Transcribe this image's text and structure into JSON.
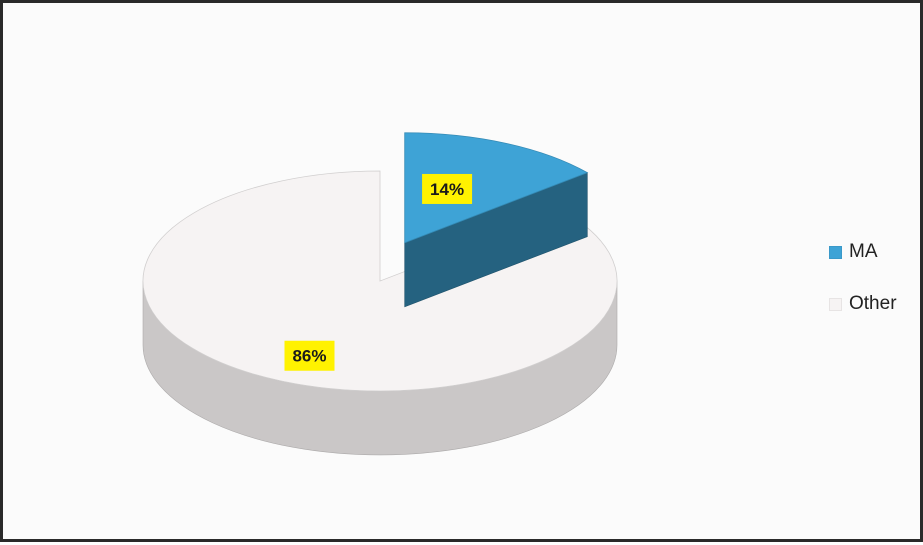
{
  "chart_data": {
    "type": "pie",
    "three_d": true,
    "slices": [
      {
        "label": "MA",
        "value": 14,
        "data_label": "14%",
        "color": "#3ea3d6",
        "exploded": true
      },
      {
        "label": "Other",
        "value": 86,
        "data_label": "86%",
        "color": "#f6f3f3"
      }
    ],
    "legend_position": "right",
    "data_label_background": "#fff200"
  }
}
